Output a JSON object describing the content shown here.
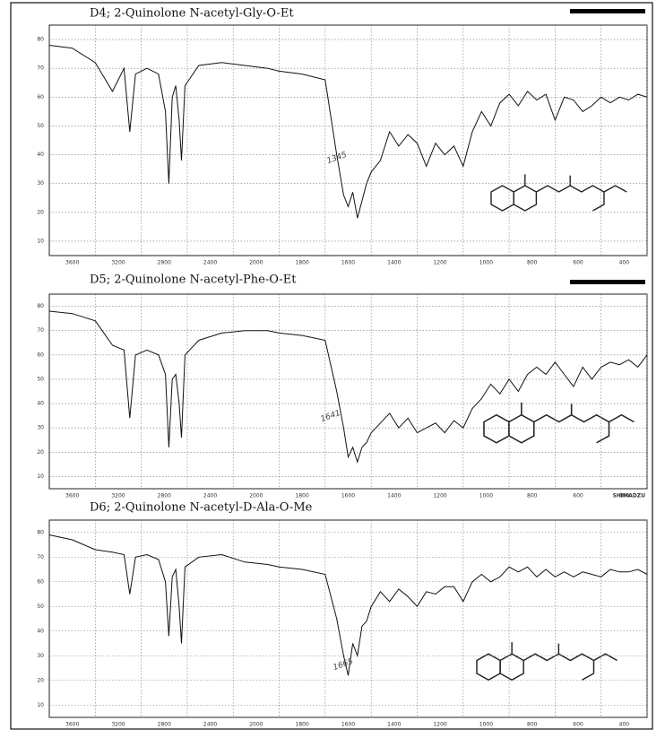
{
  "chart_data": [
    {
      "type": "line",
      "title": "D4; 2-Quinolone N-acetyl-Gly-O-Et",
      "annotation": "1345",
      "x": [
        4000,
        3800,
        3600,
        3450,
        3350,
        3300,
        3250,
        3150,
        3050,
        2990,
        2960,
        2930,
        2900,
        2870,
        2850,
        2820,
        2700,
        2500,
        2300,
        2100,
        2000,
        1900,
        1800,
        1750,
        1720,
        1700,
        1680,
        1660,
        1640,
        1620,
        1600,
        1560,
        1520,
        1480,
        1440,
        1400,
        1360,
        1320,
        1280,
        1240,
        1200,
        1160,
        1120,
        1080,
        1040,
        1000,
        960,
        920,
        880,
        840,
        800,
        760,
        720,
        680,
        640,
        600,
        560,
        520,
        480,
        440,
        400
      ],
      "values": [
        78,
        77,
        72,
        62,
        70,
        48,
        68,
        70,
        68,
        55,
        30,
        60,
        64,
        52,
        38,
        64,
        71,
        72,
        71,
        70,
        69,
        68,
        66,
        40,
        26,
        22,
        27,
        18,
        24,
        30,
        34,
        38,
        48,
        43,
        47,
        44,
        36,
        44,
        40,
        43,
        36,
        48,
        55,
        50,
        58,
        61,
        57,
        62,
        59,
        61,
        52,
        60,
        59,
        55,
        57,
        60,
        58,
        60,
        59,
        61,
        60
      ],
      "color": "#111111",
      "xlim": [
        4000,
        400
      ],
      "ylim": [
        5,
        85
      ],
      "xticks": [
        3600,
        3200,
        2800,
        2400,
        2000,
        1800,
        1600,
        1400,
        1200,
        1000,
        800,
        600,
        400
      ],
      "yticks": [
        10,
        20,
        30,
        40,
        50,
        60,
        70,
        80
      ],
      "grid": true
    },
    {
      "type": "line",
      "title": "D5;  2-Quinolone N-acetyl-Phe-O-Et",
      "annotation": "1641",
      "brand": "SHIMADZU",
      "x": [
        4000,
        3800,
        3600,
        3450,
        3350,
        3300,
        3250,
        3150,
        3050,
        2990,
        2960,
        2930,
        2900,
        2870,
        2850,
        2820,
        2700,
        2500,
        2300,
        2100,
        2000,
        1900,
        1800,
        1750,
        1720,
        1700,
        1680,
        1660,
        1640,
        1620,
        1600,
        1560,
        1520,
        1480,
        1440,
        1400,
        1360,
        1320,
        1280,
        1240,
        1200,
        1160,
        1120,
        1080,
        1040,
        1000,
        960,
        920,
        880,
        840,
        800,
        760,
        720,
        680,
        640,
        600,
        560,
        520,
        480,
        440,
        400
      ],
      "values": [
        78,
        77,
        74,
        64,
        62,
        34,
        60,
        62,
        60,
        52,
        22,
        50,
        52,
        40,
        26,
        60,
        66,
        69,
        70,
        70,
        69,
        68,
        66,
        45,
        30,
        18,
        22,
        16,
        22,
        24,
        28,
        32,
        36,
        30,
        34,
        28,
        30,
        32,
        28,
        33,
        30,
        38,
        42,
        48,
        44,
        50,
        45,
        52,
        55,
        52,
        57,
        52,
        47,
        55,
        50,
        55,
        57,
        56,
        58,
        55,
        60
      ],
      "color": "#111111",
      "xlim": [
        4000,
        400
      ],
      "ylim": [
        5,
        85
      ],
      "xticks": [
        3600,
        3200,
        2800,
        2400,
        2000,
        1800,
        1600,
        1400,
        1200,
        1000,
        800,
        600,
        400
      ],
      "yticks": [
        10,
        20,
        30,
        40,
        50,
        60,
        70,
        80
      ],
      "grid": true
    },
    {
      "type": "line",
      "title": "D6; 2-Quinolone N-acetyl-D-Ala-O-Me",
      "annotation": "1665",
      "x": [
        4000,
        3800,
        3600,
        3450,
        3350,
        3300,
        3250,
        3150,
        3050,
        2990,
        2960,
        2930,
        2900,
        2870,
        2850,
        2820,
        2700,
        2500,
        2300,
        2100,
        2000,
        1900,
        1800,
        1750,
        1720,
        1700,
        1680,
        1660,
        1640,
        1620,
        1600,
        1560,
        1520,
        1480,
        1440,
        1400,
        1360,
        1320,
        1280,
        1240,
        1200,
        1160,
        1120,
        1080,
        1040,
        1000,
        960,
        920,
        880,
        840,
        800,
        760,
        720,
        680,
        640,
        600,
        560,
        520,
        480,
        440,
        400
      ],
      "values": [
        79,
        77,
        73,
        72,
        71,
        55,
        70,
        71,
        69,
        60,
        38,
        62,
        65,
        50,
        35,
        66,
        70,
        71,
        68,
        67,
        66,
        65,
        63,
        45,
        30,
        22,
        35,
        30,
        42,
        44,
        50,
        56,
        52,
        57,
        54,
        50,
        56,
        55,
        58,
        58,
        52,
        60,
        63,
        60,
        62,
        66,
        64,
        66,
        62,
        65,
        62,
        64,
        62,
        64,
        63,
        62,
        65,
        64,
        64,
        65,
        63
      ],
      "color": "#111111",
      "xlim": [
        4000,
        400
      ],
      "ylim": [
        5,
        85
      ],
      "xticks": [
        3600,
        3200,
        2800,
        2400,
        2000,
        1800,
        1600,
        1400,
        1200,
        1000,
        800,
        600,
        400
      ],
      "yticks": [
        10,
        20,
        30,
        40,
        50,
        60,
        70,
        80
      ],
      "grid": true
    }
  ]
}
